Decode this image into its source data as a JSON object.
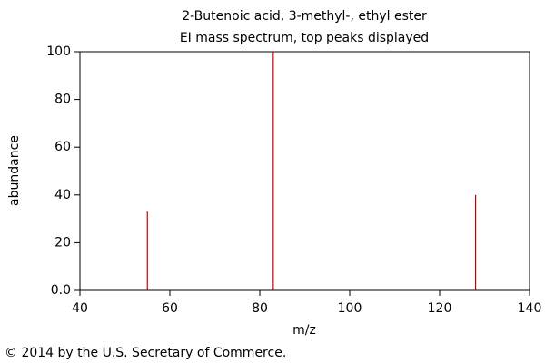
{
  "chart_data": {
    "type": "stem",
    "title": "2-Butenoic acid, 3-methyl-, ethyl ester",
    "subtitle": "EI mass spectrum, top peaks displayed",
    "x_label": "m/z",
    "y_label": "abundance",
    "x": [
      55,
      83,
      128
    ],
    "values": [
      33,
      100,
      40
    ],
    "color": "#cc0000",
    "xlim": [
      40,
      140
    ],
    "xticks": [
      40,
      60,
      80,
      100,
      120,
      140
    ],
    "ylim": [
      0,
      100
    ],
    "yticks": [
      {
        "value": 0,
        "label": "0.0"
      },
      20,
      40,
      60,
      80,
      100
    ],
    "grid": false
  },
  "copyright": "© 2014 by the U.S. Secretary of Commerce."
}
